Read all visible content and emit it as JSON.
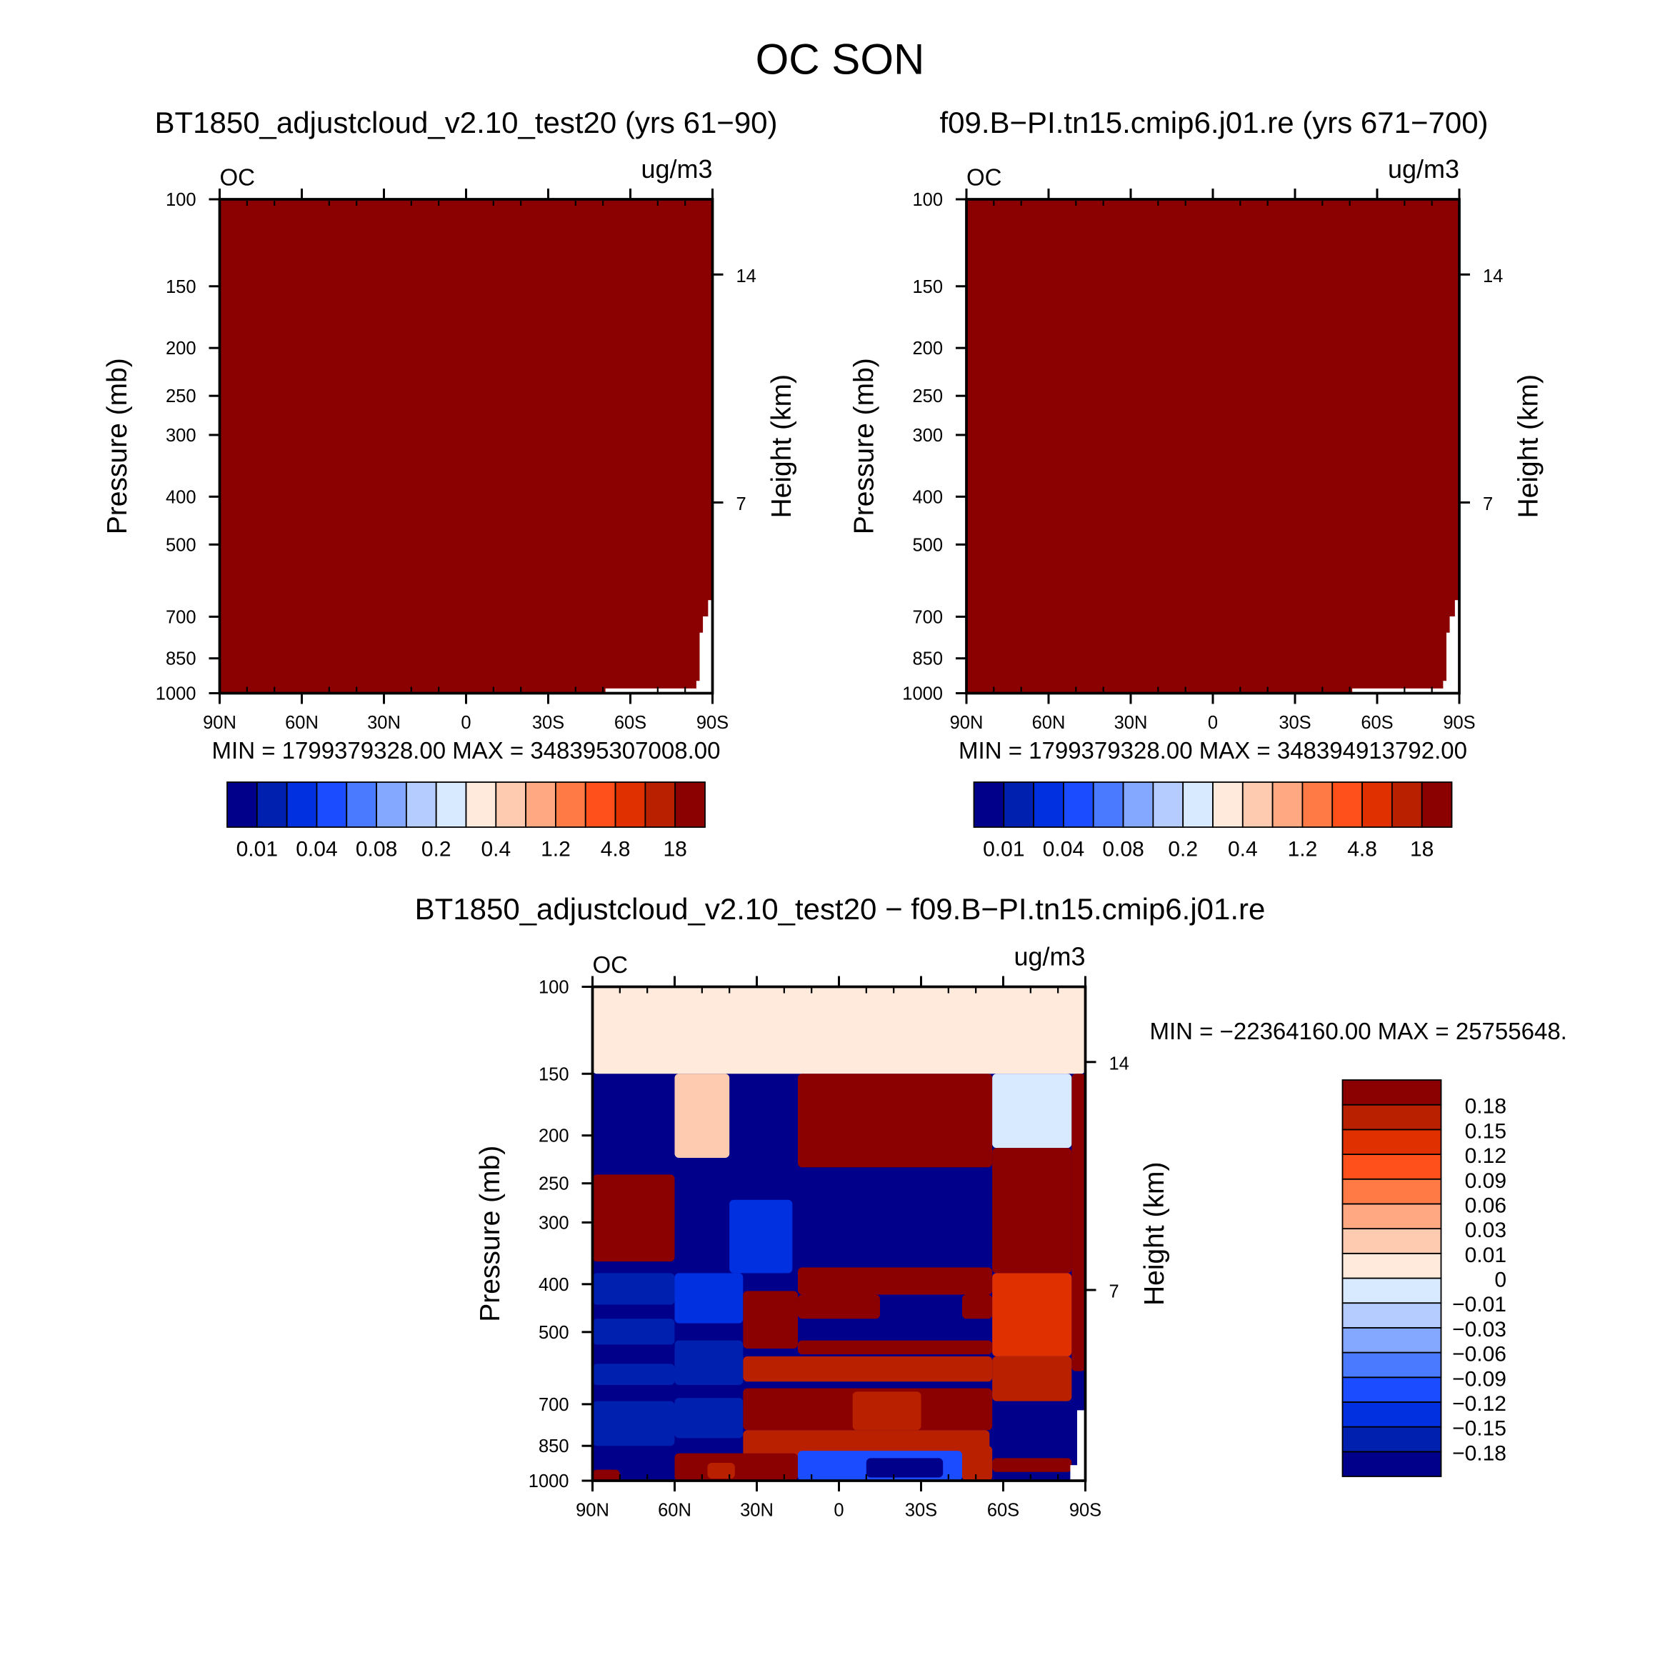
{
  "title": "OC SON",
  "chart_data": [
    {
      "type": "heatmap",
      "title": "BT1850_adjustcloud_v2.10_test20 (yrs 61−90)",
      "left_label": "OC",
      "right_label": "ug/m3",
      "stats": "MIN = 1799379328.00   MAX = 348395307008.00",
      "ylabel": "Pressure (mb)",
      "y2label": "Height (km)",
      "xlim": [
        90,
        -90
      ],
      "ylim": [
        100,
        1000
      ],
      "yscale": "log",
      "xticks": [
        {
          "value": 90,
          "label": "90N"
        },
        {
          "value": 60,
          "label": "60N"
        },
        {
          "value": 30,
          "label": "30N"
        },
        {
          "value": 0,
          "label": "0"
        },
        {
          "value": -30,
          "label": "30S"
        },
        {
          "value": -60,
          "label": "60S"
        },
        {
          "value": -90,
          "label": "90S"
        }
      ],
      "yticks": [
        100,
        150,
        200,
        250,
        300,
        400,
        500,
        700,
        850,
        1000
      ],
      "y2ticks": [
        {
          "pressure": 142,
          "label": "14"
        },
        {
          "pressure": 411,
          "label": "7"
        }
      ],
      "background_level": 15,
      "regions": [],
      "missing": [
        [
          -88.4,
          -90,
          648,
          1000
        ],
        [
          -86.5,
          -90,
          699,
          1000
        ],
        [
          -85.3,
          -90,
          754,
          1000
        ],
        [
          -84.1,
          -90,
          944,
          1000
        ],
        [
          -50.9,
          -90,
          978,
          1000
        ]
      ],
      "colorbar": {
        "orientation": "horizontal",
        "colors": [
          "#00008a",
          "#0020b0",
          "#0030e0",
          "#1c4cff",
          "#4a7aff",
          "#84a8ff",
          "#b4ccff",
          "#d8eaff",
          "#ffeadc",
          "#ffcbb0",
          "#ffa882",
          "#ff7a45",
          "#ff4f1a",
          "#e03000",
          "#b82000",
          "#8b0000"
        ],
        "labels": [
          {
            "boundary": 1,
            "label": "0.01"
          },
          {
            "boundary": 3,
            "label": "0.04"
          },
          {
            "boundary": 5,
            "label": "0.08"
          },
          {
            "boundary": 7,
            "label": "0.2"
          },
          {
            "boundary": 9,
            "label": "0.4"
          },
          {
            "boundary": 11,
            "label": "1.2"
          },
          {
            "boundary": 13,
            "label": "4.8"
          },
          {
            "boundary": 15,
            "label": "18"
          }
        ]
      }
    },
    {
      "type": "heatmap",
      "title": "f09.B−PI.tn15.cmip6.j01.re (yrs 671−700)",
      "left_label": "OC",
      "right_label": "ug/m3",
      "stats": "MIN = 1799379328.00   MAX = 348394913792.00",
      "ylabel": "Pressure (mb)",
      "y2label": "Height (km)",
      "xlim": [
        90,
        -90
      ],
      "ylim": [
        100,
        1000
      ],
      "yscale": "log",
      "xticks": [
        {
          "value": 90,
          "label": "90N"
        },
        {
          "value": 60,
          "label": "60N"
        },
        {
          "value": 30,
          "label": "30N"
        },
        {
          "value": 0,
          "label": "0"
        },
        {
          "value": -30,
          "label": "30S"
        },
        {
          "value": -60,
          "label": "60S"
        },
        {
          "value": -90,
          "label": "90S"
        }
      ],
      "yticks": [
        100,
        150,
        200,
        250,
        300,
        400,
        500,
        700,
        850,
        1000
      ],
      "y2ticks": [
        {
          "pressure": 142,
          "label": "14"
        },
        {
          "pressure": 411,
          "label": "7"
        }
      ],
      "background_level": 15,
      "regions": [],
      "missing": [
        [
          -88.4,
          -90,
          648,
          1000
        ],
        [
          -86.5,
          -90,
          699,
          1000
        ],
        [
          -85.3,
          -90,
          754,
          1000
        ],
        [
          -84.1,
          -90,
          944,
          1000
        ],
        [
          -50.9,
          -90,
          978,
          1000
        ]
      ],
      "colorbar": {
        "orientation": "horizontal",
        "colors": [
          "#00008a",
          "#0020b0",
          "#0030e0",
          "#1c4cff",
          "#4a7aff",
          "#84a8ff",
          "#b4ccff",
          "#d8eaff",
          "#ffeadc",
          "#ffcbb0",
          "#ffa882",
          "#ff7a45",
          "#ff4f1a",
          "#e03000",
          "#b82000",
          "#8b0000"
        ],
        "labels": [
          {
            "boundary": 1,
            "label": "0.01"
          },
          {
            "boundary": 3,
            "label": "0.04"
          },
          {
            "boundary": 5,
            "label": "0.08"
          },
          {
            "boundary": 7,
            "label": "0.2"
          },
          {
            "boundary": 9,
            "label": "0.4"
          },
          {
            "boundary": 11,
            "label": "1.2"
          },
          {
            "boundary": 13,
            "label": "4.8"
          },
          {
            "boundary": 15,
            "label": "18"
          }
        ]
      }
    },
    {
      "type": "heatmap",
      "title": "BT1850_adjustcloud_v2.10_test20 − f09.B−PI.tn15.cmip6.j01.re",
      "left_label": "OC",
      "right_label": "ug/m3",
      "stats": "MIN = −22364160.00   MAX = 25755648.",
      "ylabel": "Pressure (mb)",
      "y2label": "Height (km)",
      "xlim": [
        90,
        -90
      ],
      "ylim": [
        100,
        1000
      ],
      "yscale": "log",
      "xticks": [
        {
          "value": 90,
          "label": "90N"
        },
        {
          "value": 60,
          "label": "60N"
        },
        {
          "value": 30,
          "label": "30N"
        },
        {
          "value": 0,
          "label": "0"
        },
        {
          "value": -30,
          "label": "30S"
        },
        {
          "value": -60,
          "label": "60S"
        },
        {
          "value": -90,
          "label": "90S"
        }
      ],
      "yticks": [
        100,
        150,
        200,
        250,
        300,
        400,
        500,
        700,
        850,
        1000
      ],
      "y2ticks": [
        {
          "pressure": 142,
          "label": "14"
        },
        {
          "pressure": 411,
          "label": "7"
        }
      ],
      "background_level": 0,
      "regions": [
        [
          90,
          -90,
          100,
          150,
          8
        ],
        [
          60,
          40,
          150,
          222,
          9
        ],
        [
          15,
          -56,
          150,
          232,
          15
        ],
        [
          -56,
          -85,
          150,
          212,
          7
        ],
        [
          -85,
          -90,
          150,
          600,
          15
        ],
        [
          90,
          60,
          240,
          360,
          15
        ],
        [
          -56,
          -85,
          212,
          380,
          15
        ],
        [
          40,
          17,
          270,
          380,
          2
        ],
        [
          90,
          60,
          380,
          440,
          1
        ],
        [
          90,
          60,
          470,
          530,
          1
        ],
        [
          90,
          60,
          580,
          640,
          1
        ],
        [
          90,
          60,
          690,
          850,
          1
        ],
        [
          60,
          35,
          380,
          480,
          2
        ],
        [
          60,
          35,
          520,
          640,
          1
        ],
        [
          60,
          35,
          680,
          820,
          1
        ],
        [
          15,
          -56,
          370,
          420,
          15
        ],
        [
          15,
          -15,
          420,
          470,
          15
        ],
        [
          -45,
          -56,
          420,
          470,
          15
        ],
        [
          -56,
          -85,
          380,
          560,
          13
        ],
        [
          35,
          15,
          413,
          540,
          15
        ],
        [
          15,
          -56,
          520,
          555,
          15
        ],
        [
          35,
          -56,
          560,
          630,
          14
        ],
        [
          35,
          -56,
          650,
          790,
          15
        ],
        [
          -5,
          -30,
          660,
          790,
          14
        ],
        [
          35,
          -55,
          790,
          900,
          14
        ],
        [
          60,
          15,
          880,
          1000,
          15
        ],
        [
          48,
          38,
          920,
          990,
          14
        ],
        [
          15,
          -45,
          870,
          1000,
          3
        ],
        [
          -10,
          -38,
          900,
          985,
          0
        ],
        [
          -45,
          -56,
          850,
          1000,
          14
        ],
        [
          -56,
          -85,
          560,
          690,
          14
        ],
        [
          -56,
          -85,
          900,
          960,
          15
        ],
        [
          90,
          80,
          950,
          1000,
          15
        ]
      ],
      "missing": [
        [
          -87,
          -90,
          720,
          1000
        ],
        [
          -84.5,
          -90,
          930,
          1000
        ]
      ],
      "colorbar": {
        "orientation": "vertical",
        "colors": [
          "#00008a",
          "#0020b0",
          "#0030e0",
          "#1c4cff",
          "#4a7aff",
          "#84a8ff",
          "#b4ccff",
          "#d8eaff",
          "#ffeadc",
          "#ffcbb0",
          "#ffa882",
          "#ff7a45",
          "#ff4f1a",
          "#e03000",
          "#b82000",
          "#8b0000"
        ],
        "labels": [
          {
            "boundary": 1,
            "label": "−0.18"
          },
          {
            "boundary": 2,
            "label": "−0.15"
          },
          {
            "boundary": 3,
            "label": "−0.12"
          },
          {
            "boundary": 4,
            "label": "−0.09"
          },
          {
            "boundary": 5,
            "label": "−0.06"
          },
          {
            "boundary": 6,
            "label": "−0.03"
          },
          {
            "boundary": 7,
            "label": "−0.01"
          },
          {
            "boundary": 8,
            "label": "0"
          },
          {
            "boundary": 9,
            "label": "0.01"
          },
          {
            "boundary": 10,
            "label": "0.03"
          },
          {
            "boundary": 11,
            "label": "0.06"
          },
          {
            "boundary": 12,
            "label": "0.09"
          },
          {
            "boundary": 13,
            "label": "0.12"
          },
          {
            "boundary": 14,
            "label": "0.15"
          },
          {
            "boundary": 15,
            "label": "0.18"
          }
        ]
      }
    }
  ]
}
